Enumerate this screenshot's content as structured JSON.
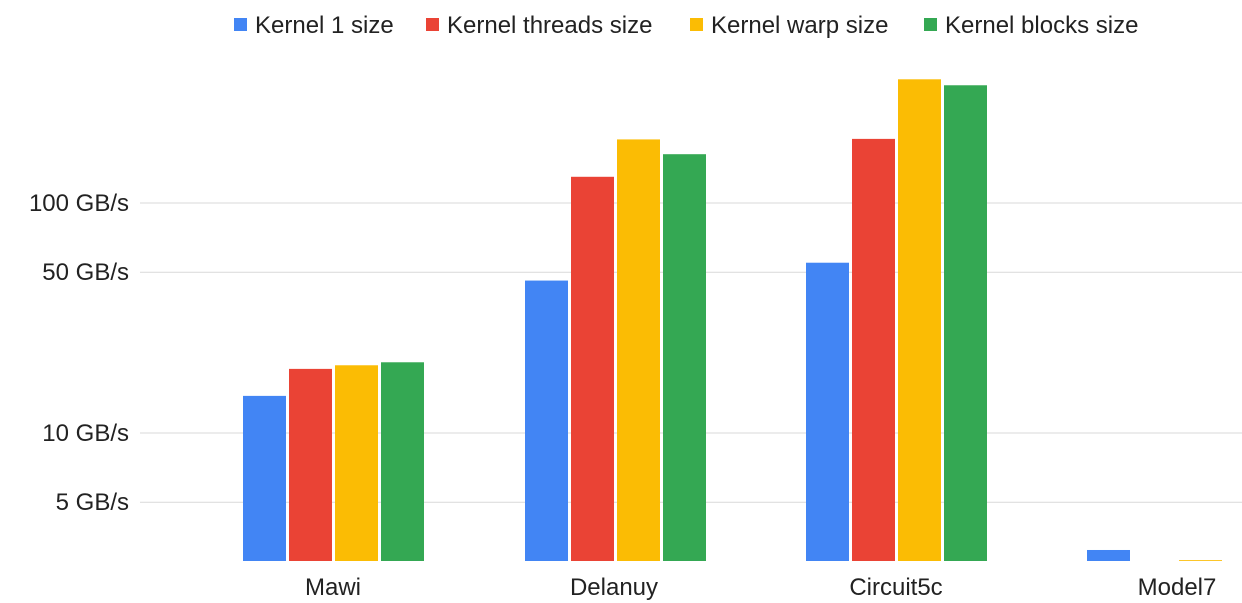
{
  "chart_data": {
    "type": "bar",
    "yscale": "log",
    "categories": [
      "Mawi",
      "Delanuy",
      "Circuit5c",
      "Model7"
    ],
    "series": [
      {
        "name": "Kernel 1 size",
        "color": "#4285f4",
        "values": [
          14.5,
          46,
          55,
          null
        ]
      },
      {
        "name": "Kernel threads size",
        "color": "#ea4335",
        "values": [
          19,
          130,
          190,
          null
        ]
      },
      {
        "name": "Kernel warp size",
        "color": "#fbbc04",
        "values": [
          19.7,
          189,
          345,
          null
        ]
      },
      {
        "name": "Kernel blocks size",
        "color": "#34a853",
        "values": [
          20.3,
          163,
          325,
          null
        ]
      }
    ],
    "yticks": [
      {
        "value": 5,
        "label": "5 GB/s"
      },
      {
        "value": 10,
        "label": "10 GB/s"
      },
      {
        "value": 50,
        "label": "50 GB/s"
      },
      {
        "value": 100,
        "label": "100 GB/s"
      }
    ],
    "model7_values": [
      3.1,
      2.7,
      2.8
    ],
    "ylim": [
      1.9,
      400
    ],
    "legend_position": "top",
    "grid": true
  }
}
